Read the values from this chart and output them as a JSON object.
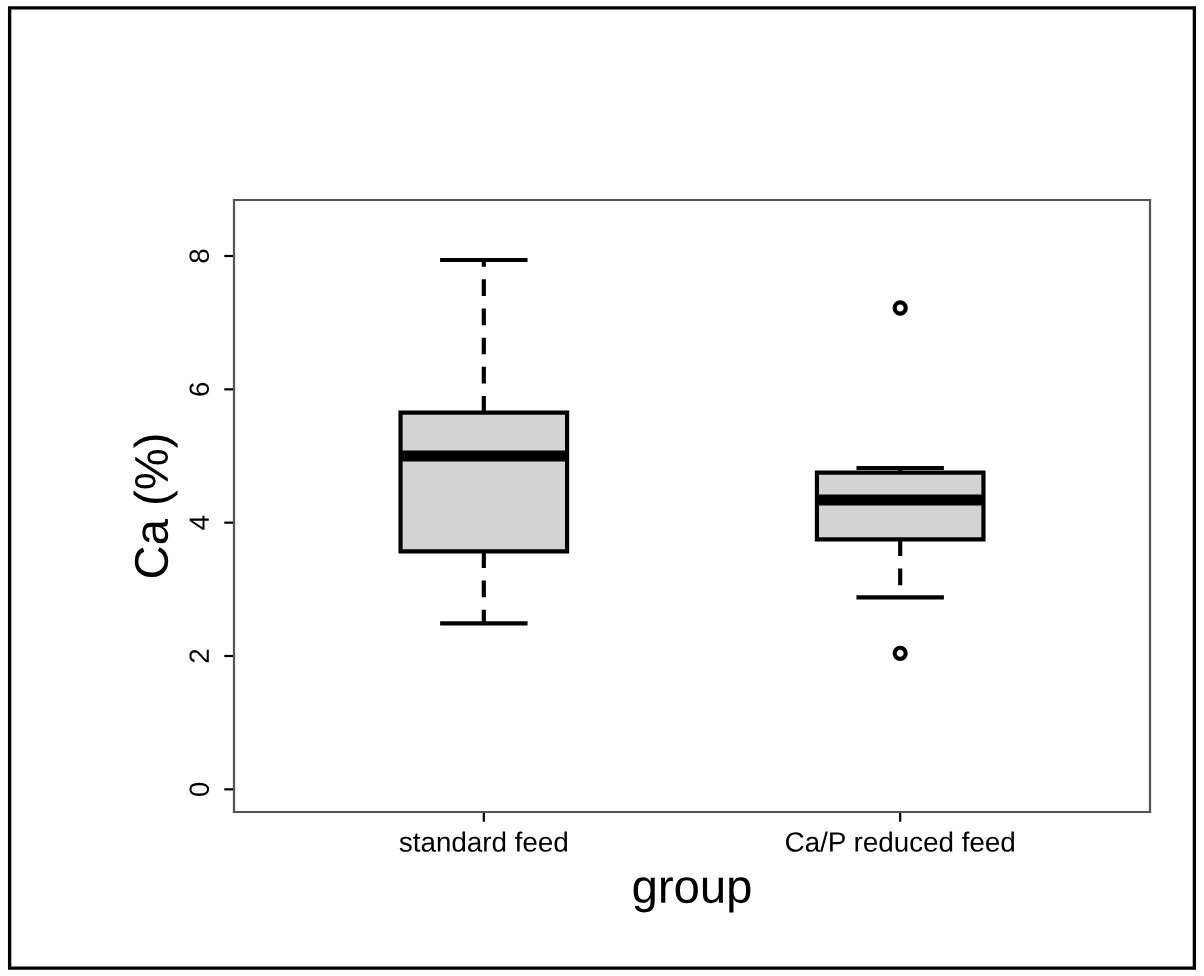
{
  "chart_data": {
    "type": "box",
    "xlabel": "group",
    "ylabel": "Ca (%)",
    "categories": [
      "standard feed",
      "Ca/P reduced feed"
    ],
    "boxes": [
      {
        "low": 2.49,
        "q1": 3.57,
        "median": 5.0,
        "q3": 5.65,
        "high": 7.94
      },
      {
        "low": 2.88,
        "q1": 3.75,
        "median": 4.34,
        "q3": 4.75,
        "high": 4.82,
        "outliers": [
          7.22,
          2.04
        ]
      }
    ],
    "color": "#d3d3d3",
    "ylim": [
      -0.34,
      8.84
    ],
    "yticks": [
      0,
      2,
      4,
      6,
      8
    ],
    "grid": false
  }
}
